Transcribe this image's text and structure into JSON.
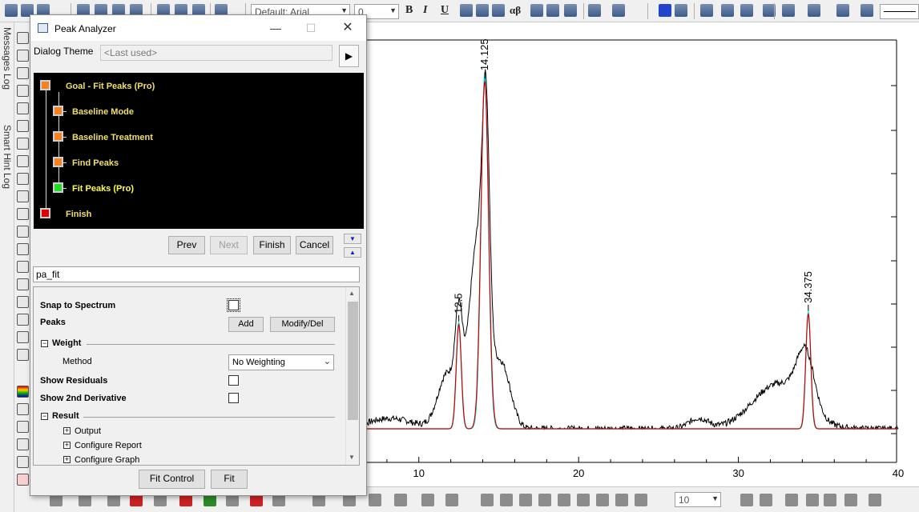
{
  "toolbar": {
    "font_name": "Default: Arial",
    "font_size": "0",
    "greek_label": "αβ",
    "bold_label": "B",
    "italic_label": "I",
    "underline_label": "U"
  },
  "side_tabs": [
    "Messages Log",
    "Smart Hint Log"
  ],
  "dialog": {
    "title": "Peak Analyzer",
    "theme_label": "Dialog Theme",
    "theme_value": "<Last used>",
    "theme_arrow": "▶",
    "steps": [
      {
        "label": "Goal - Fit Peaks (Pro)",
        "color": "#f58220",
        "active": false
      },
      {
        "label": "Baseline Mode",
        "color": "#f58220",
        "active": false
      },
      {
        "label": "Baseline Treatment",
        "color": "#f58220",
        "active": false
      },
      {
        "label": "Find Peaks",
        "color": "#f58220",
        "active": false
      },
      {
        "label": "Fit Peaks (Pro)",
        "color": "#22dd22",
        "active": true
      },
      {
        "label": "Finish",
        "color": "#e00000",
        "active": false
      }
    ],
    "nav": {
      "prev": "Prev",
      "next": "Next",
      "finish": "Finish",
      "cancel": "Cancel"
    },
    "name_value": "pa_fit",
    "settings": {
      "snap_label": "Snap to Spectrum",
      "peaks_label": "Peaks",
      "add_label": "Add",
      "modify_label": "Modify/Del",
      "weight_label": "Weight",
      "method_label": "Method",
      "method_value": "No Weighting",
      "residuals_label": "Show Residuals",
      "derivative_label": "Show 2nd Derivative",
      "result_label": "Result",
      "output_label": "Output",
      "report_label": "Configure Report",
      "graph_label": "Configure Graph"
    },
    "footer": {
      "fit_control": "Fit Control",
      "fit": "Fit"
    }
  },
  "bottom": {
    "zoom_value": "10"
  },
  "chart_data": {
    "type": "line",
    "xlim": [
      6,
      40
    ],
    "ylim": [
      0,
      1.05
    ],
    "x_ticks": [
      "10",
      "20",
      "30",
      "40"
    ],
    "peak_labels": [
      {
        "x": 12.5,
        "label": "12.5",
        "height": 0.3
      },
      {
        "x": 14.125,
        "label": "14.125",
        "height": 1.0
      },
      {
        "x": 34.375,
        "label": "34.375",
        "height": 0.33
      }
    ],
    "series": [
      {
        "role": "data",
        "color": "#000000"
      },
      {
        "role": "fit",
        "color": "#cc0000"
      },
      {
        "role": "peaks",
        "color": "#00dddd"
      }
    ]
  }
}
